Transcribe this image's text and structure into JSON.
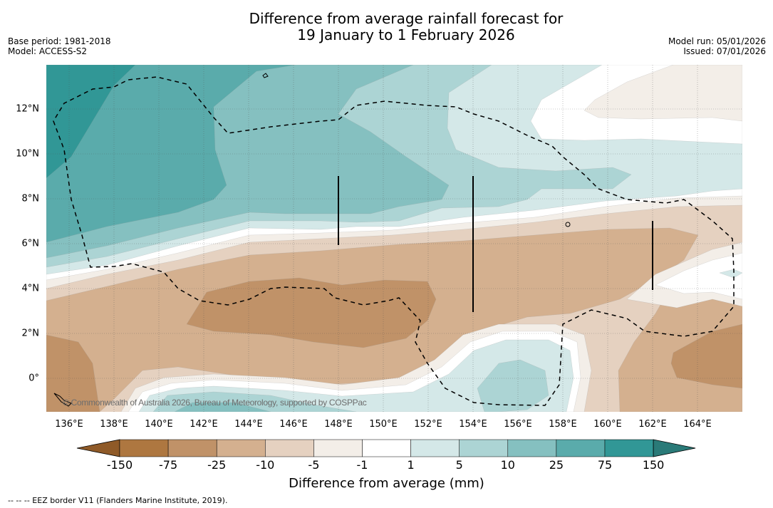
{
  "title": {
    "line1": "Difference from average rainfall forecast for",
    "line2": "19 January to 1 February 2026"
  },
  "info_left": {
    "base_period": "Base period: 1981-2018",
    "model": "Model: ACCESS-S2"
  },
  "info_right": {
    "model_run": "Model run: 05/01/2026",
    "issued": "Issued: 07/01/2026"
  },
  "map": {
    "lat_labels": [
      "12°N",
      "10°N",
      "8°N",
      "6°N",
      "4°N",
      "2°N",
      "0°"
    ],
    "lat_values": [
      12,
      10,
      8,
      6,
      4,
      2,
      0
    ],
    "lon_labels": [
      "136°E",
      "138°E",
      "140°E",
      "142°E",
      "144°E",
      "146°E",
      "148°E",
      "150°E",
      "152°E",
      "154°E",
      "156°E",
      "158°E",
      "160°E",
      "162°E",
      "164°E"
    ],
    "lon_values": [
      136,
      138,
      140,
      142,
      144,
      146,
      148,
      150,
      152,
      154,
      156,
      158,
      160,
      162,
      164
    ],
    "extent": {
      "lon": [
        135,
        166
      ],
      "lat": [
        -1.5,
        14
      ]
    },
    "copyright": "© Commonwealth of Australia 2026, Bureau of Meteorology, supported by COSPPac"
  },
  "colorbar": {
    "ticks": [
      "-150",
      "-75",
      "-25",
      "-10",
      "-5",
      "-1",
      "1",
      "5",
      "10",
      "25",
      "75",
      "150"
    ],
    "colors": [
      "#ae7740",
      "#c09268",
      "#d4b08f",
      "#e5d1c0",
      "#f3eee8",
      "#ffffff",
      "#d4e8e8",
      "#acd4d4",
      "#85c0c0",
      "#5aabab",
      "#319796"
    ],
    "extend_low": "#8f5a28",
    "extend_high": "#2a7a78",
    "label": "Difference from average (mm)"
  },
  "footer": "--  --  -- EEZ border V11 (Flanders Marine Institute, 2019)."
}
